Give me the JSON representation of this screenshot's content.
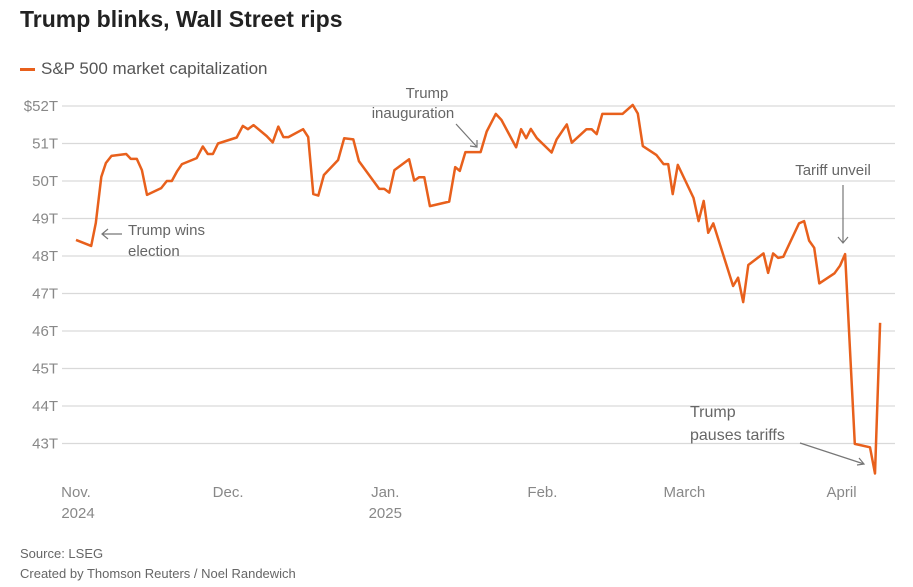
{
  "title": "Trump blinks, Wall Street rips",
  "legend": {
    "label": "S&P 500 market capitalization",
    "color": "#e8601c"
  },
  "source": "Source: LSEG",
  "credit": "Created by Thomson Reuters / Noel Randewich",
  "chart_data": {
    "type": "line",
    "title": "Trump blinks, Wall Street rips",
    "ylabel": "S&P 500 market capitalization (trillions USD)",
    "ylim": [
      42,
      52
    ],
    "yticks": [
      {
        "value": 52,
        "label": "$52T"
      },
      {
        "value": 51,
        "label": "51T"
      },
      {
        "value": 50,
        "label": "50T"
      },
      {
        "value": 49,
        "label": "49T"
      },
      {
        "value": 48,
        "label": "48T"
      },
      {
        "value": 47,
        "label": "47T"
      },
      {
        "value": 46,
        "label": "46T"
      },
      {
        "value": 45,
        "label": "45T"
      },
      {
        "value": 44,
        "label": "44T"
      },
      {
        "value": 43,
        "label": "43T"
      }
    ],
    "x_units": "days since Nov 1, 2024",
    "xticks": [
      {
        "day": 0,
        "label": "Nov.",
        "year": "2024"
      },
      {
        "day": 30,
        "label": "Dec.",
        "year": ""
      },
      {
        "day": 61,
        "label": "Jan.",
        "year": "2025"
      },
      {
        "day": 92,
        "label": "Feb.",
        "year": ""
      },
      {
        "day": 120,
        "label": "March",
        "year": ""
      },
      {
        "day": 151,
        "label": "April",
        "year": ""
      }
    ],
    "grid": true,
    "series": [
      {
        "name": "S&P 500 market capitalization",
        "points": [
          [
            0,
            48.43
          ],
          [
            3,
            48.27
          ],
          [
            3.9,
            48.88
          ],
          [
            5,
            50.11
          ],
          [
            5.9,
            50.48
          ],
          [
            7,
            50.67
          ],
          [
            9.9,
            50.72
          ],
          [
            10.8,
            50.59
          ],
          [
            12,
            50.59
          ],
          [
            13,
            50.29
          ],
          [
            14,
            49.63
          ],
          [
            16.8,
            49.81
          ],
          [
            17.9,
            50.0
          ],
          [
            18.9,
            50.0
          ],
          [
            19.9,
            50.25
          ],
          [
            20.9,
            50.45
          ],
          [
            23.8,
            50.61
          ],
          [
            25,
            50.92
          ],
          [
            26,
            50.72
          ],
          [
            27,
            50.72
          ],
          [
            28,
            51.0
          ],
          [
            31.7,
            51.16
          ],
          [
            32.9,
            51.47
          ],
          [
            33.9,
            51.38
          ],
          [
            35,
            51.49
          ],
          [
            37.6,
            51.2
          ],
          [
            38.8,
            51.03
          ],
          [
            39.9,
            51.45
          ],
          [
            40.9,
            51.17
          ],
          [
            41.9,
            51.17
          ],
          [
            44.8,
            51.38
          ],
          [
            45.8,
            51.17
          ],
          [
            46.8,
            49.65
          ],
          [
            47.8,
            49.61
          ],
          [
            48.9,
            50.16
          ],
          [
            51.7,
            50.56
          ],
          [
            52.9,
            51.14
          ],
          [
            54.7,
            51.11
          ],
          [
            55.8,
            50.53
          ],
          [
            59.8,
            49.79
          ],
          [
            60.8,
            49.79
          ],
          [
            61.8,
            49.69
          ],
          [
            62.8,
            50.29
          ],
          [
            65.7,
            50.58
          ],
          [
            66.7,
            50.01
          ],
          [
            67.7,
            50.1
          ],
          [
            68.7,
            50.1
          ],
          [
            69.8,
            49.33
          ],
          [
            73.6,
            49.45
          ],
          [
            74.8,
            50.37
          ],
          [
            75.7,
            50.27
          ],
          [
            76.8,
            50.77
          ],
          [
            79.8,
            50.77
          ],
          [
            81,
            51.32
          ],
          [
            82.8,
            51.79
          ],
          [
            83.9,
            51.63
          ],
          [
            86.8,
            50.9
          ],
          [
            87.8,
            51.38
          ],
          [
            88.8,
            51.14
          ],
          [
            89.7,
            51.39
          ],
          [
            90.9,
            51.14
          ],
          [
            93.8,
            50.76
          ],
          [
            94.8,
            51.11
          ],
          [
            96.8,
            51.51
          ],
          [
            97.8,
            51.02
          ],
          [
            100.7,
            51.38
          ],
          [
            101.7,
            51.38
          ],
          [
            102.7,
            51.25
          ],
          [
            103.8,
            51.79
          ],
          [
            107.8,
            51.79
          ],
          [
            109.8,
            52.03
          ],
          [
            110.8,
            51.8
          ],
          [
            111.8,
            50.93
          ],
          [
            114.5,
            50.69
          ],
          [
            115.9,
            50.45
          ],
          [
            116.8,
            50.45
          ],
          [
            117.7,
            49.65
          ],
          [
            118.7,
            50.43
          ],
          [
            121.8,
            49.55
          ],
          [
            122.8,
            48.93
          ],
          [
            123.8,
            49.47
          ],
          [
            124.7,
            48.62
          ],
          [
            125.7,
            48.87
          ],
          [
            129.6,
            47.2
          ],
          [
            130.6,
            47.42
          ],
          [
            131.6,
            46.77
          ],
          [
            132.6,
            47.76
          ],
          [
            135.6,
            48.07
          ],
          [
            136.5,
            47.55
          ],
          [
            137.5,
            48.07
          ],
          [
            138.5,
            47.95
          ],
          [
            139.5,
            47.98
          ],
          [
            142.6,
            48.87
          ],
          [
            143.6,
            48.93
          ],
          [
            144.6,
            48.41
          ],
          [
            145.6,
            48.22
          ],
          [
            146.6,
            47.27
          ],
          [
            149.6,
            47.54
          ],
          [
            150.7,
            47.74
          ],
          [
            151.7,
            48.05
          ],
          [
            153.6,
            42.99
          ],
          [
            156.6,
            42.9
          ],
          [
            157.6,
            42.2
          ],
          [
            158.6,
            46.22
          ]
        ]
      }
    ],
    "annotations": [
      {
        "id": "election",
        "lines": [
          "Trump wins",
          "election"
        ]
      },
      {
        "id": "inauguration",
        "lines": [
          "Trump",
          "inauguration"
        ]
      },
      {
        "id": "tariff",
        "lines": [
          "Tariff unveil"
        ]
      },
      {
        "id": "pause",
        "lines": [
          "Trump",
          "pauses tariffs"
        ]
      }
    ]
  }
}
